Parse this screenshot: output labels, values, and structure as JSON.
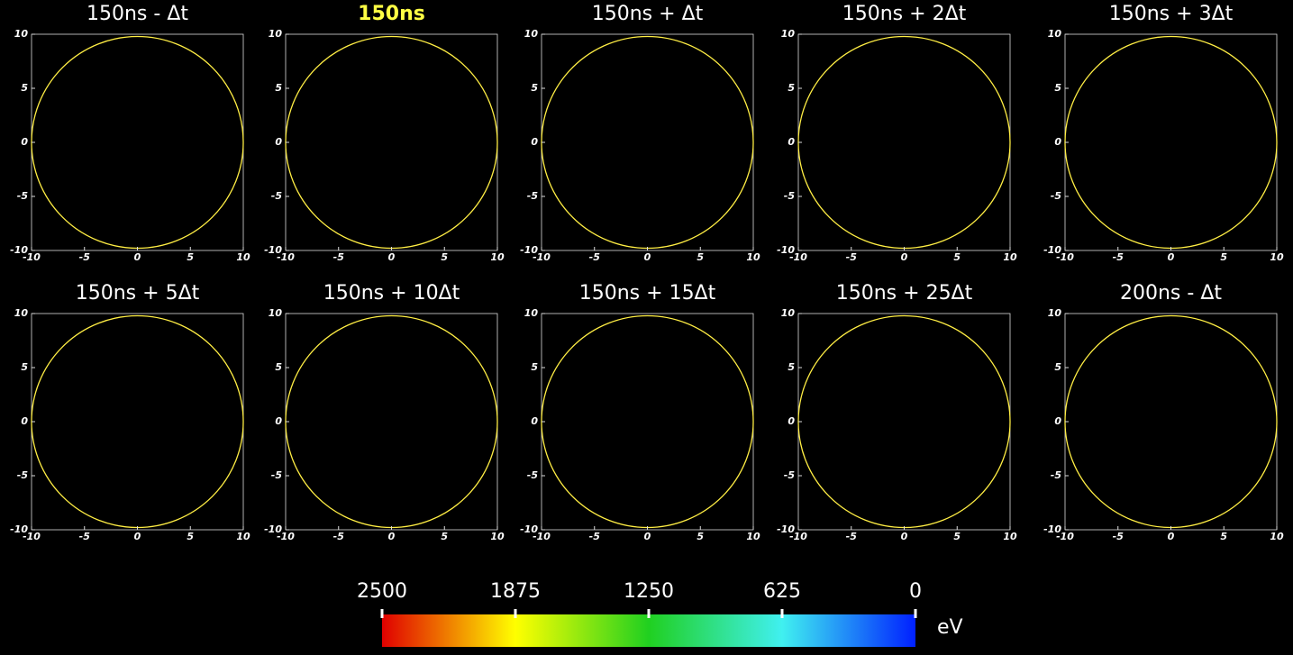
{
  "panels": [
    {
      "title": "150ns - Δt",
      "title_color": "#ffffff"
    },
    {
      "title": "150ns",
      "title_color": "#ffff44"
    },
    {
      "title": "150ns + Δt",
      "title_color": "#ffffff"
    },
    {
      "title": "150ns + 2Δt",
      "title_color": "#ffffff"
    },
    {
      "title": "150ns + 3Δt",
      "title_color": "#ffffff"
    },
    {
      "title": "150ns + 5Δt",
      "title_color": "#ffffff"
    },
    {
      "title": "150ns + 10Δt",
      "title_color": "#ffffff"
    },
    {
      "title": "150ns + 15Δt",
      "title_color": "#ffffff"
    },
    {
      "title": "150ns + 25Δt",
      "title_color": "#ffffff"
    },
    {
      "title": "200ns - Δt",
      "title_color": "#ffffff"
    }
  ],
  "axes": {
    "xlim": [
      -10,
      10
    ],
    "ylim": [
      -10,
      10
    ],
    "xticks": [
      -10,
      -5,
      0,
      5,
      10
    ],
    "yticks": [
      -10,
      -5,
      0,
      5,
      10
    ]
  },
  "colorbar": {
    "lim": [
      2500,
      0
    ],
    "ticks": [
      2500,
      1875,
      1250,
      625,
      0
    ],
    "unit": "eV",
    "colors": [
      "#e00000",
      "#ffff00",
      "#20d020",
      "#40f0f0",
      "#0020ff"
    ]
  }
}
